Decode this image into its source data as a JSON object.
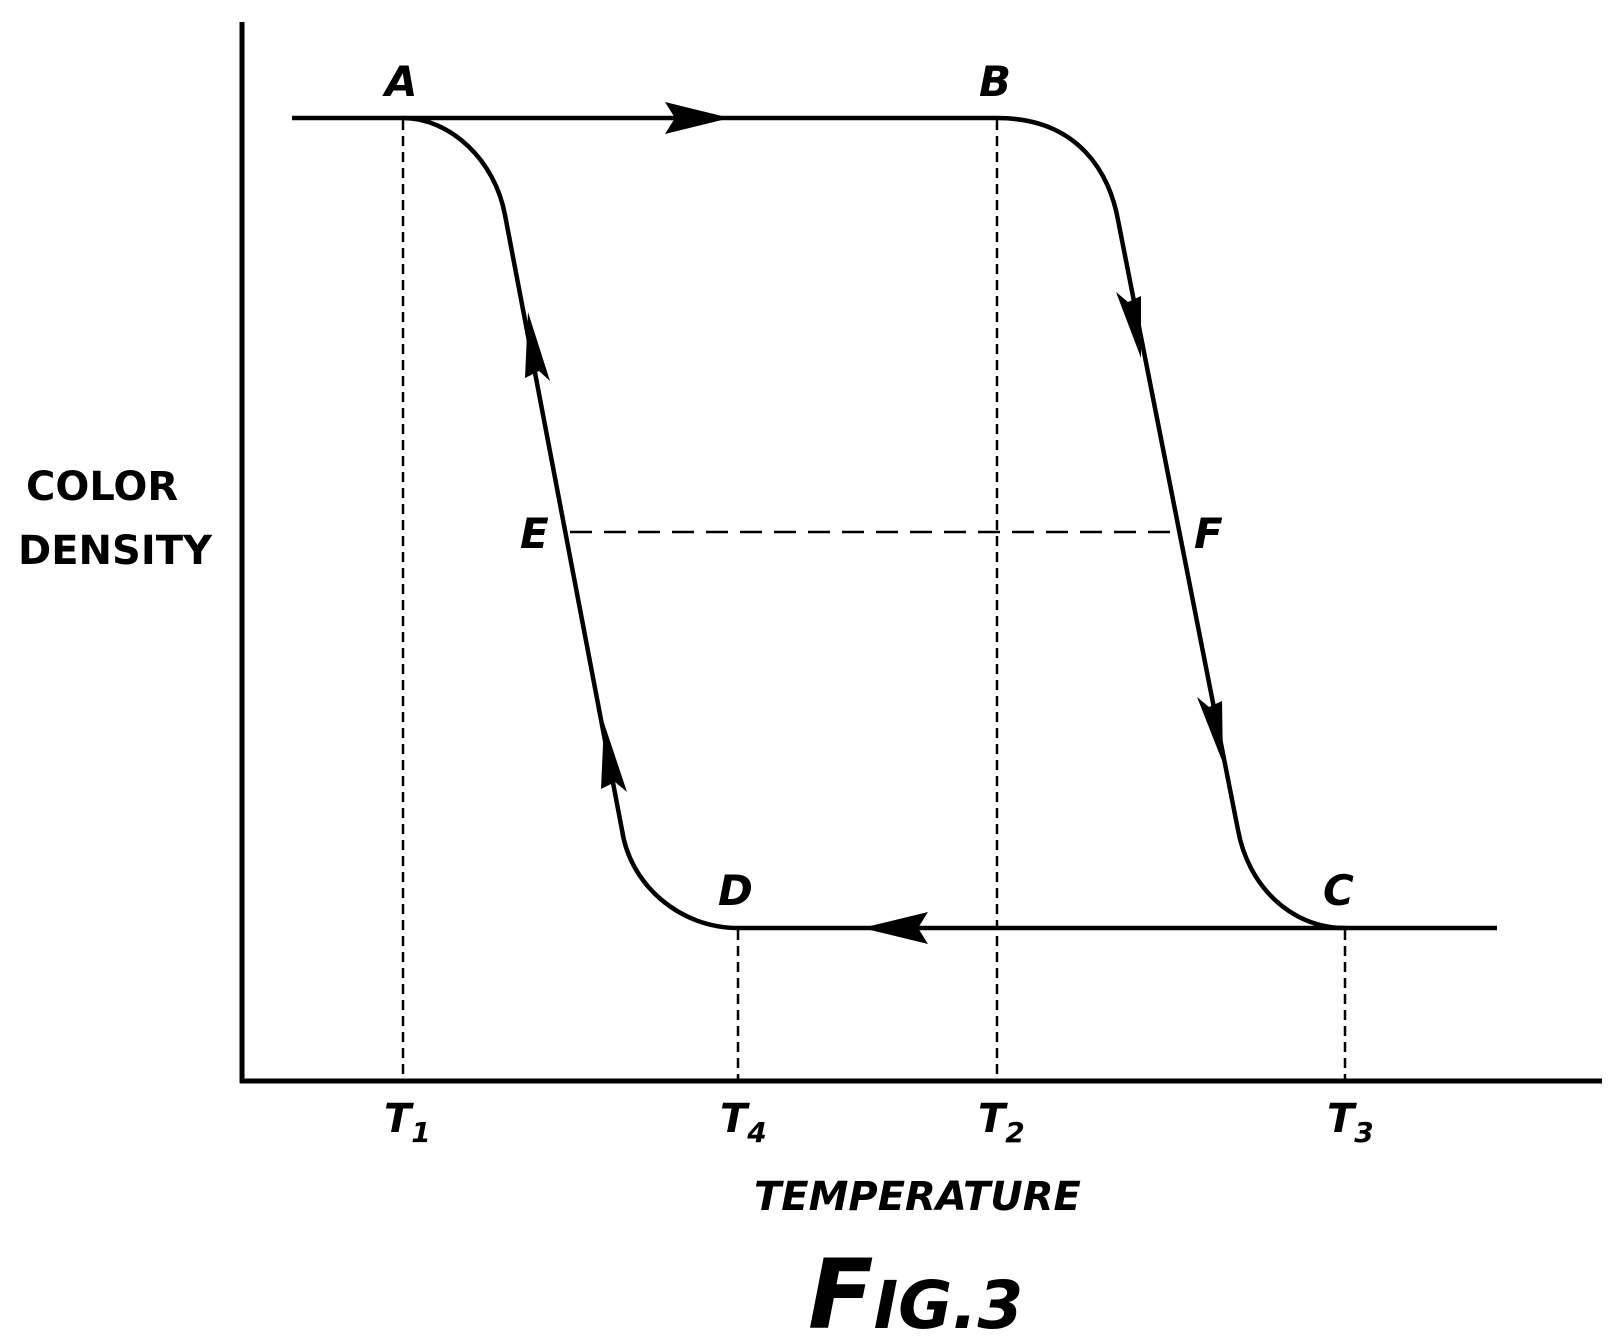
{
  "points": {
    "a": "A",
    "b": "B",
    "c": "C",
    "d": "D",
    "e": "E",
    "f": "F"
  },
  "ticks": [
    {
      "main": "T",
      "sub": "1"
    },
    {
      "main": "T",
      "sub": "4"
    },
    {
      "main": "T",
      "sub": "2"
    },
    {
      "main": "T",
      "sub": "3"
    }
  ],
  "y_axis_label": [
    "COLOR",
    "DENSITY"
  ],
  "x_axis_label": "TEMPERATURE",
  "figure_caption": {
    "initial": "F",
    "rest": "IG.3"
  },
  "colors": {
    "ink": "#000000",
    "background": "#ffffff"
  }
}
